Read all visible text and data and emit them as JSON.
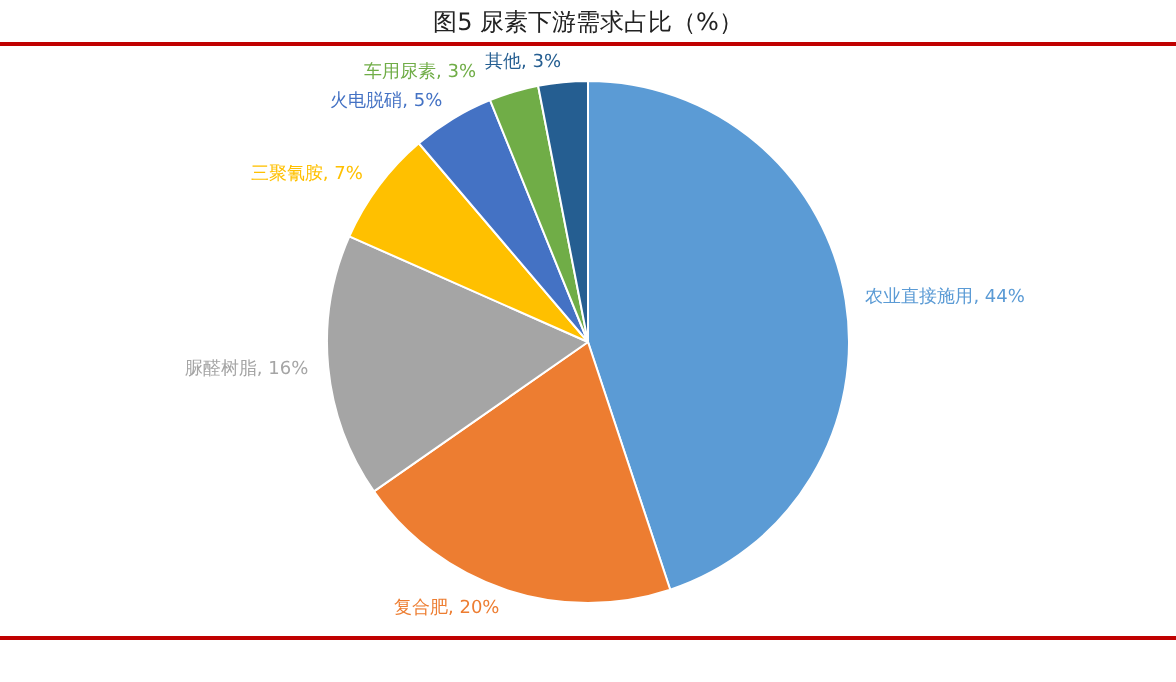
{
  "chart_data": {
    "type": "pie",
    "title": "图5 尿素下游需求占比（%）",
    "categories": [
      "农业直接施用",
      "复合肥",
      "脲醛树脂",
      "三聚氰胺",
      "火电脱硝",
      "车用尿素",
      "其他"
    ],
    "values": [
      44,
      20,
      16,
      7,
      5,
      3,
      3
    ],
    "colors": [
      "#5b9bd5",
      "#ed7d31",
      "#a5a5a5",
      "#ffc000",
      "#4472c4",
      "#70ad47",
      "#255e91"
    ],
    "value_labels": [
      "44%",
      "20%",
      "16%",
      "7%",
      "5%",
      "3%",
      "3%"
    ],
    "legend": false
  }
}
